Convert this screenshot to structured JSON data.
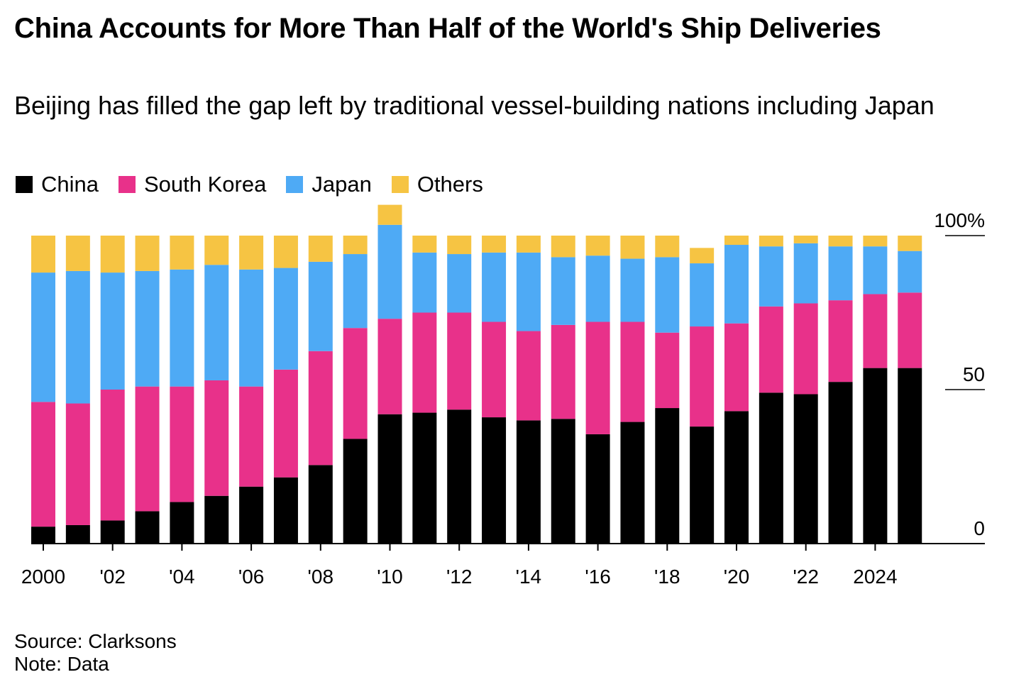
{
  "header": {
    "title": "China Accounts for More Than Half of the World's Ship Deliveries",
    "subtitle": "Beijing has filled the gap left by traditional vessel-building nations including Japan"
  },
  "legend": [
    {
      "label": "China",
      "color": "#000000"
    },
    {
      "label": "South Korea",
      "color": "#E8318A"
    },
    {
      "label": "Japan",
      "color": "#4EAAF5"
    },
    {
      "label": "Others",
      "color": "#F6C443"
    }
  ],
  "footer": {
    "source": "Source: Clarksons",
    "note": "Note: Data"
  },
  "chart_data": {
    "type": "bar",
    "stacked": true,
    "title": "China Accounts for More Than Half of the World's Ship Deliveries",
    "subtitle": "Beijing has filled the gap left by traditional vessel-building nations including Japan",
    "ylabel": "",
    "xlabel": "",
    "ylim": [
      0,
      100
    ],
    "y_ticks": [
      0,
      50,
      100
    ],
    "y_tick_labels": [
      "0",
      "50",
      "100%"
    ],
    "categories": [
      "2000",
      "2001",
      "2002",
      "2003",
      "2004",
      "2005",
      "2006",
      "2007",
      "2008",
      "2009",
      "2010",
      "2011",
      "2012",
      "2013",
      "2014",
      "2015",
      "2016",
      "2017",
      "2018",
      "2019",
      "2020",
      "2021",
      "2022",
      "2023",
      "2024",
      "2025"
    ],
    "x_tick_labels": [
      "2000",
      "",
      "'02",
      "",
      "'04",
      "",
      "'06",
      "",
      "'08",
      "",
      "'10",
      "",
      "'12",
      "",
      "'14",
      "",
      "'16",
      "",
      "'18",
      "",
      "'20",
      "",
      "'22",
      "",
      "2024",
      ""
    ],
    "series": [
      {
        "name": "China",
        "color": "#000000",
        "values": [
          5.5,
          6,
          7.5,
          10.5,
          13.5,
          15.5,
          18.5,
          21.5,
          25.5,
          34,
          42,
          42.5,
          43.5,
          41,
          40,
          40.5,
          35.5,
          39.5,
          44,
          38,
          43,
          49,
          48.5,
          52.5,
          57,
          57
        ]
      },
      {
        "name": "South Korea",
        "color": "#E8318A",
        "values": [
          40.5,
          39.5,
          42.5,
          40.5,
          37.5,
          37.5,
          32.5,
          35,
          37,
          36,
          31,
          32.5,
          31.5,
          31,
          29,
          30.5,
          36.5,
          32.5,
          24.5,
          32.5,
          28.5,
          28,
          29.5,
          26.5,
          24,
          24.5
        ]
      },
      {
        "name": "Japan",
        "color": "#4EAAF5",
        "values": [
          42,
          43,
          38,
          37.5,
          38,
          37.5,
          38,
          33,
          29,
          24,
          30.5,
          19.5,
          19,
          22.5,
          25.5,
          22,
          21.5,
          20.5,
          24.5,
          20.5,
          25.5,
          19.5,
          19.5,
          17.5,
          15.5,
          13.5
        ]
      },
      {
        "name": "Others",
        "color": "#F6C443",
        "values": [
          12,
          11.5,
          12,
          11.5,
          11,
          9.5,
          11,
          10.5,
          8.5,
          6,
          6.5,
          5.5,
          6,
          5.5,
          5.5,
          7,
          6.5,
          7.5,
          7,
          5,
          3,
          3.5,
          2.5,
          3.5,
          3.5,
          5
        ]
      }
    ]
  }
}
